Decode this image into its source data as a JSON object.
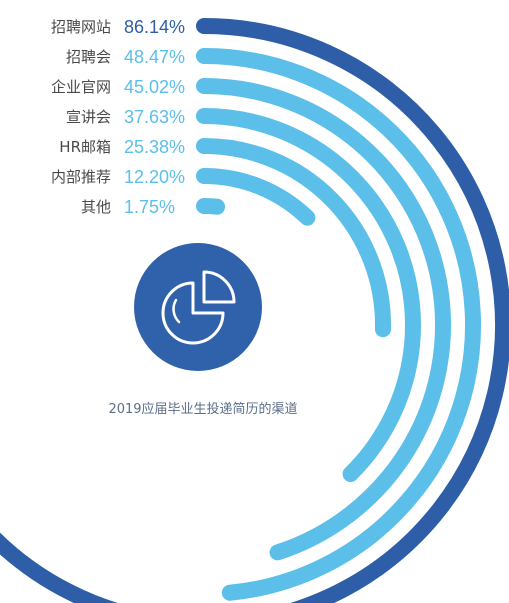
{
  "chart_data": {
    "type": "radial-bar",
    "title": "",
    "caption": "2019应届毕业生投递简历的渠道",
    "categories": [
      "招聘网站",
      "招聘会",
      "企业官网",
      "宣讲会",
      "HR邮箱",
      "内部推荐",
      "其他"
    ],
    "values": [
      86.14,
      48.47,
      45.02,
      37.63,
      25.38,
      12.2,
      1.75
    ],
    "value_labels": [
      "86.14%",
      "48.47%",
      "45.02%",
      "37.63%",
      "25.38%",
      "12.20%",
      "1.75%"
    ],
    "unit": "%",
    "max": 100
  },
  "colors": {
    "primary": "#2f5ea8",
    "secondary": "#5bbfea",
    "icon_circle": "#3062ac",
    "label_text": "#4a4a4a",
    "caption_text": "#5b6f8a"
  },
  "icon": "pie-chart-icon"
}
